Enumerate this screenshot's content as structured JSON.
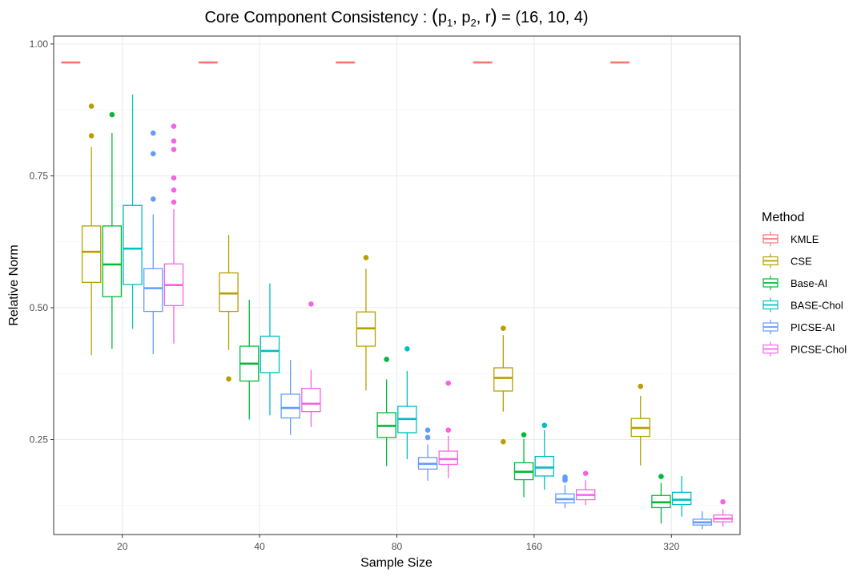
{
  "chart_data": {
    "type": "boxplot",
    "title": "Core Component Consistency : (p₁, p₂, r) = (16, 10, 4)",
    "title_parts": {
      "main": "Core Component Consistency : ",
      "p": "p",
      "sub1": "1",
      "sub2": "2",
      "r": "r",
      "values": "(16, 10, 4)"
    },
    "xlabel": "Sample Size",
    "ylabel": "Relative Norm",
    "categories": [
      "20",
      "40",
      "80",
      "160",
      "320"
    ],
    "ylim": [
      0.07,
      1.015
    ],
    "yticks": [
      0.25,
      0.5,
      0.75,
      1.0
    ],
    "ytick_labels": [
      "0.25",
      "0.50",
      "0.75",
      "1.00"
    ],
    "grid": true,
    "legend": {
      "title": "Method",
      "position": "right"
    },
    "series": [
      {
        "name": "KMLE",
        "color": "#F8766D",
        "boxes": [
          {
            "whislo": 0.965,
            "q1": 0.965,
            "med": 0.965,
            "q3": 0.965,
            "whishi": 0.965,
            "outliers": []
          },
          {
            "whislo": 0.965,
            "q1": 0.965,
            "med": 0.965,
            "q3": 0.965,
            "whishi": 0.965,
            "outliers": []
          },
          {
            "whislo": 0.965,
            "q1": 0.965,
            "med": 0.965,
            "q3": 0.965,
            "whishi": 0.965,
            "outliers": []
          },
          {
            "whislo": 0.965,
            "q1": 0.965,
            "med": 0.965,
            "q3": 0.965,
            "whishi": 0.965,
            "outliers": []
          },
          {
            "whislo": 0.965,
            "q1": 0.965,
            "med": 0.965,
            "q3": 0.965,
            "whishi": 0.965,
            "outliers": []
          }
        ]
      },
      {
        "name": "CSE",
        "color": "#B79F00",
        "boxes": [
          {
            "whislo": 0.41,
            "q1": 0.548,
            "med": 0.606,
            "q3": 0.655,
            "whishi": 0.805,
            "outliers": [
              0.826,
              0.882
            ]
          },
          {
            "whislo": 0.42,
            "q1": 0.493,
            "med": 0.527,
            "q3": 0.566,
            "whishi": 0.638,
            "outliers": [
              0.365
            ]
          },
          {
            "whislo": 0.343,
            "q1": 0.427,
            "med": 0.461,
            "q3": 0.492,
            "whishi": 0.574,
            "outliers": [
              0.595
            ]
          },
          {
            "whislo": 0.303,
            "q1": 0.342,
            "med": 0.367,
            "q3": 0.386,
            "whishi": 0.448,
            "outliers": [
              0.461,
              0.246
            ]
          },
          {
            "whislo": 0.201,
            "q1": 0.256,
            "med": 0.272,
            "q3": 0.29,
            "whishi": 0.333,
            "outliers": [
              0.351
            ]
          }
        ]
      },
      {
        "name": "Base-AI",
        "color": "#00BA38",
        "boxes": [
          {
            "whislo": 0.422,
            "q1": 0.521,
            "med": 0.582,
            "q3": 0.655,
            "whishi": 0.831,
            "outliers": [
              0.866
            ]
          },
          {
            "whislo": 0.288,
            "q1": 0.361,
            "med": 0.394,
            "q3": 0.427,
            "whishi": 0.515,
            "outliers": []
          },
          {
            "whislo": 0.2,
            "q1": 0.254,
            "med": 0.276,
            "q3": 0.301,
            "whishi": 0.364,
            "outliers": [
              0.402
            ]
          },
          {
            "whislo": 0.141,
            "q1": 0.174,
            "med": 0.189,
            "q3": 0.206,
            "whishi": 0.251,
            "outliers": [
              0.259
            ]
          },
          {
            "whislo": 0.091,
            "q1": 0.121,
            "med": 0.131,
            "q3": 0.144,
            "whishi": 0.168,
            "outliers": [
              0.18
            ]
          }
        ]
      },
      {
        "name": "BASE-Chol",
        "color": "#00BFC4",
        "boxes": [
          {
            "whislo": 0.46,
            "q1": 0.544,
            "med": 0.612,
            "q3": 0.694,
            "whishi": 0.904,
            "outliers": []
          },
          {
            "whislo": 0.296,
            "q1": 0.377,
            "med": 0.418,
            "q3": 0.446,
            "whishi": 0.546,
            "outliers": []
          },
          {
            "whislo": 0.213,
            "q1": 0.263,
            "med": 0.289,
            "q3": 0.313,
            "whishi": 0.38,
            "outliers": [
              0.422
            ]
          },
          {
            "whislo": 0.155,
            "q1": 0.181,
            "med": 0.197,
            "q3": 0.218,
            "whishi": 0.268,
            "outliers": [
              0.277
            ]
          },
          {
            "whislo": 0.104,
            "q1": 0.127,
            "med": 0.136,
            "q3": 0.15,
            "whishi": 0.181,
            "outliers": []
          }
        ]
      },
      {
        "name": "PICSE-AI",
        "color": "#619CFF",
        "boxes": [
          {
            "whislo": 0.412,
            "q1": 0.493,
            "med": 0.537,
            "q3": 0.574,
            "whishi": 0.677,
            "outliers": [
              0.706,
              0.792,
              0.831
            ]
          },
          {
            "whislo": 0.259,
            "q1": 0.291,
            "med": 0.31,
            "q3": 0.336,
            "whishi": 0.401,
            "outliers": []
          },
          {
            "whislo": 0.172,
            "q1": 0.194,
            "med": 0.204,
            "q3": 0.216,
            "whishi": 0.241,
            "outliers": [
              0.254,
              0.268
            ]
          },
          {
            "whislo": 0.12,
            "q1": 0.13,
            "med": 0.137,
            "q3": 0.147,
            "whishi": 0.164,
            "outliers": [
              0.173,
              0.176,
              0.179
            ]
          },
          {
            "whislo": 0.08,
            "q1": 0.088,
            "med": 0.093,
            "q3": 0.099,
            "whishi": 0.114,
            "outliers": []
          }
        ]
      },
      {
        "name": "PICSE-Chol",
        "color": "#F564E3",
        "boxes": [
          {
            "whislo": 0.432,
            "q1": 0.504,
            "med": 0.543,
            "q3": 0.583,
            "whishi": 0.687,
            "outliers": [
              0.7,
              0.723,
              0.746,
              0.8,
              0.816,
              0.844
            ]
          },
          {
            "whislo": 0.274,
            "q1": 0.303,
            "med": 0.318,
            "q3": 0.347,
            "whishi": 0.382,
            "outliers": [
              0.507
            ]
          },
          {
            "whislo": 0.177,
            "q1": 0.203,
            "med": 0.213,
            "q3": 0.228,
            "whishi": 0.257,
            "outliers": [
              0.268,
              0.357
            ]
          },
          {
            "whislo": 0.126,
            "q1": 0.136,
            "med": 0.145,
            "q3": 0.155,
            "whishi": 0.173,
            "outliers": [
              0.186
            ]
          },
          {
            "whislo": 0.085,
            "q1": 0.094,
            "med": 0.1,
            "q3": 0.107,
            "whishi": 0.118,
            "outliers": [
              0.132
            ]
          }
        ]
      }
    ]
  }
}
